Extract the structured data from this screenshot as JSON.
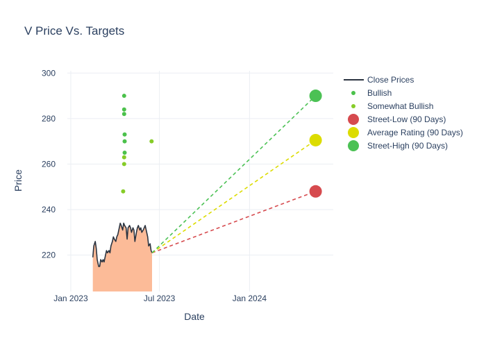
{
  "chart_data": {
    "type": "scatter",
    "title": "V Price Vs. Targets",
    "xlabel": "Date",
    "ylabel": "Price",
    "xlim": [
      "2022-12-25",
      "2024-06-20"
    ],
    "ylim": [
      204,
      301
    ],
    "x_ticks": [
      {
        "date": "2023-01-01",
        "label": "Jan 2023"
      },
      {
        "date": "2023-07-01",
        "label": "Jul 2023"
      },
      {
        "date": "2024-01-01",
        "label": "Jan 2024"
      }
    ],
    "y_ticks": [
      220,
      240,
      260,
      280,
      300
    ],
    "grid": true,
    "legend_position": "right",
    "colors": {
      "close": "#2a3340",
      "close_fill": "#fcbb98",
      "bullish": "#4bc14b",
      "somewhat_bullish": "#86cc28",
      "street_low": "#d64a4e",
      "average": "#dcdc00",
      "street_high": "#4bc154",
      "grid": "#ebeef3",
      "text": "#2a3f5f"
    },
    "series": [
      {
        "name": "Close Prices",
        "type": "line",
        "x": [
          "2023-02-15",
          "2023-02-17",
          "2023-02-20",
          "2023-02-22",
          "2023-02-24",
          "2023-02-27",
          "2023-03-01",
          "2023-03-03",
          "2023-03-06",
          "2023-03-08",
          "2023-03-10",
          "2023-03-13",
          "2023-03-15",
          "2023-03-17",
          "2023-03-20",
          "2023-03-22",
          "2023-03-24",
          "2023-03-27",
          "2023-03-29",
          "2023-03-31",
          "2023-04-03",
          "2023-04-05",
          "2023-04-07",
          "2023-04-10",
          "2023-04-12",
          "2023-04-14",
          "2023-04-17",
          "2023-04-19",
          "2023-04-21",
          "2023-04-24",
          "2023-04-26",
          "2023-04-28",
          "2023-05-01",
          "2023-05-03",
          "2023-05-05",
          "2023-05-08",
          "2023-05-10",
          "2023-05-12",
          "2023-05-15",
          "2023-05-17",
          "2023-05-19",
          "2023-05-22",
          "2023-05-24",
          "2023-05-26",
          "2023-05-29",
          "2023-05-31",
          "2023-06-02",
          "2023-06-05",
          "2023-06-07",
          "2023-06-09",
          "2023-06-12",
          "2023-06-14",
          "2023-06-16"
        ],
        "y": [
          219,
          224,
          226,
          223,
          218,
          215,
          215,
          218,
          217,
          218,
          217,
          220,
          222,
          221,
          222,
          221,
          224,
          226,
          228,
          227,
          226,
          228,
          229,
          232,
          234,
          233,
          231,
          234,
          233,
          232,
          227,
          232,
          233,
          232,
          230,
          232,
          231,
          226,
          230,
          232,
          233,
          231,
          232,
          230,
          231,
          232,
          233,
          230,
          228,
          224,
          225,
          222,
          221
        ]
      },
      {
        "name": "Bullish",
        "type": "scatter",
        "x": [
          "2023-04-20",
          "2023-04-20",
          "2023-04-20",
          "2023-04-21",
          "2023-04-21",
          "2023-04-21"
        ],
        "y": [
          290,
          284,
          282,
          273,
          270,
          265
        ]
      },
      {
        "name": "Somewhat Bullish",
        "type": "scatter",
        "x": [
          "2023-04-18",
          "2023-04-20",
          "2023-04-20",
          "2023-06-15"
        ],
        "y": [
          248,
          263,
          260,
          270
        ]
      },
      {
        "name": "Street-Low (90 Days)",
        "type": "target",
        "start": {
          "x": "2023-06-16",
          "y": 221
        },
        "end": {
          "x": "2024-05-15",
          "y": 248
        }
      },
      {
        "name": "Average Rating (90 Days)",
        "type": "target",
        "start": {
          "x": "2023-06-16",
          "y": 221
        },
        "end": {
          "x": "2024-05-15",
          "y": 270.5
        }
      },
      {
        "name": "Street-High (90 Days)",
        "type": "target",
        "start": {
          "x": "2023-06-16",
          "y": 221
        },
        "end": {
          "x": "2024-05-15",
          "y": 290
        }
      }
    ]
  }
}
